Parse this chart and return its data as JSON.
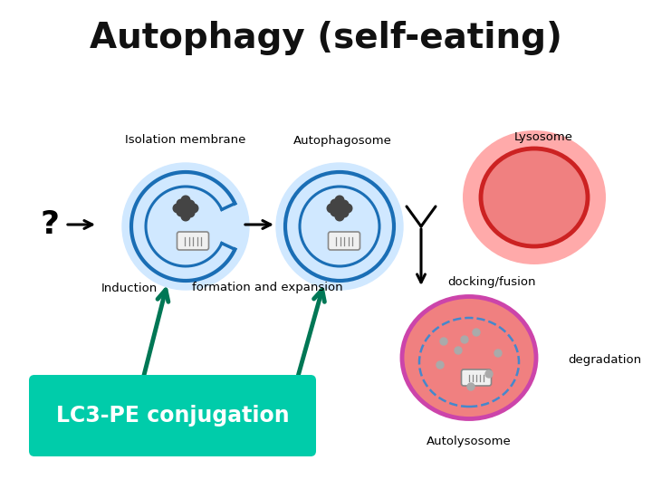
{
  "title": "Autophagy (self-eating)",
  "title_fontsize": 28,
  "title_fontweight": "bold",
  "background_color": "#ffffff",
  "labels": {
    "isolation_membrane": "Isolation membrane",
    "autophagosome": "Autophagosome",
    "lysosome": "Lysosome",
    "induction": "Induction",
    "formation_expansion": "formation and expansion",
    "docking_fusion": "docking/fusion",
    "degradation": "degradation",
    "autolysosome": "Autolysosome",
    "lc3": "LC3-PE conjugation",
    "question": "?"
  },
  "colors": {
    "blue_membrane": "#1a6eb5",
    "blue_glow": "#d0e8ff",
    "lysosome_red": "#cc2222",
    "lysosome_glow": "#ffaaaa",
    "lysosome_fill": "#f08080",
    "autolysosome_outer": "#cc44aa",
    "autolysosome_fill": "#f08080",
    "autolyso_dashed": "#4488cc",
    "lc3_box": "#00ccaa",
    "lc3_text": "#ffffff",
    "arrow_teal": "#007755",
    "text_black": "#111111",
    "mito_edge": "#888888",
    "mito_fill": "#f0f0f0",
    "blob_color": "#444444",
    "dot_color": "#aaaaaa"
  }
}
